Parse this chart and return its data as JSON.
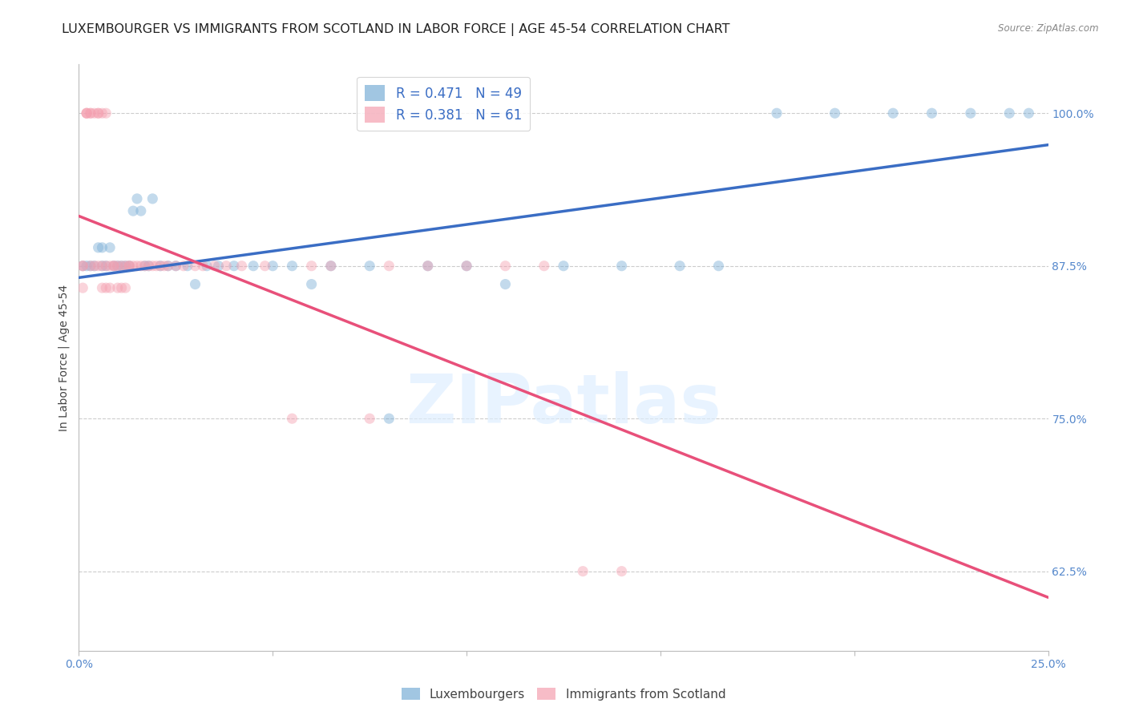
{
  "title": "LUXEMBOURGER VS IMMIGRANTS FROM SCOTLAND IN LABOR FORCE | AGE 45-54 CORRELATION CHART",
  "source": "Source: ZipAtlas.com",
  "ylabel": "In Labor Force | Age 45-54",
  "watermark": "ZIPatlas",
  "blue_R": 0.471,
  "blue_N": 49,
  "pink_R": 0.381,
  "pink_N": 61,
  "blue_color": "#7aaed6",
  "pink_color": "#f4a0b0",
  "blue_line_color": "#3a6dc4",
  "pink_line_color": "#e8507a",
  "legend_text_color": "#3a6dc4",
  "axis_label_color": "#5588cc",
  "title_color": "#222222",
  "background_color": "#FFFFFF",
  "grid_color": "#cccccc",
  "xlim": [
    0.0,
    0.25
  ],
  "ylim": [
    0.56,
    1.04
  ],
  "xticks": [
    0.0,
    0.05,
    0.1,
    0.15,
    0.2,
    0.25
  ],
  "yticks": [
    0.625,
    0.75,
    0.875,
    1.0
  ],
  "xticklabels": [
    "0.0%",
    "",
    "",
    "",
    "",
    "25.0%"
  ],
  "yticklabels": [
    "62.5%",
    "75.0%",
    "87.5%",
    "100.0%"
  ],
  "blue_x": [
    0.001,
    0.002,
    0.003,
    0.004,
    0.005,
    0.006,
    0.006,
    0.007,
    0.008,
    0.009,
    0.01,
    0.011,
    0.012,
    0.013,
    0.014,
    0.015,
    0.016,
    0.017,
    0.018,
    0.019,
    0.021,
    0.023,
    0.025,
    0.028,
    0.03,
    0.033,
    0.036,
    0.04,
    0.045,
    0.05,
    0.055,
    0.06,
    0.065,
    0.075,
    0.08,
    0.09,
    0.1,
    0.11,
    0.125,
    0.14,
    0.155,
    0.165,
    0.18,
    0.195,
    0.21,
    0.22,
    0.23,
    0.24,
    0.245
  ],
  "blue_y": [
    0.875,
    0.875,
    0.875,
    0.875,
    0.89,
    0.875,
    0.89,
    0.875,
    0.89,
    0.875,
    0.875,
    0.875,
    0.875,
    0.875,
    0.92,
    0.93,
    0.92,
    0.875,
    0.875,
    0.93,
    0.875,
    0.875,
    0.875,
    0.875,
    0.86,
    0.875,
    0.875,
    0.875,
    0.875,
    0.875,
    0.875,
    0.86,
    0.875,
    0.875,
    0.75,
    0.875,
    0.875,
    0.86,
    0.875,
    0.875,
    0.875,
    0.875,
    1.0,
    1.0,
    1.0,
    1.0,
    1.0,
    1.0,
    1.0
  ],
  "pink_x": [
    0.001,
    0.001,
    0.001,
    0.002,
    0.002,
    0.002,
    0.003,
    0.003,
    0.003,
    0.004,
    0.004,
    0.005,
    0.005,
    0.005,
    0.006,
    0.006,
    0.006,
    0.007,
    0.007,
    0.007,
    0.008,
    0.008,
    0.009,
    0.009,
    0.01,
    0.01,
    0.011,
    0.011,
    0.012,
    0.012,
    0.013,
    0.013,
    0.014,
    0.015,
    0.016,
    0.017,
    0.018,
    0.019,
    0.02,
    0.021,
    0.022,
    0.023,
    0.025,
    0.027,
    0.03,
    0.032,
    0.035,
    0.038,
    0.042,
    0.048,
    0.055,
    0.06,
    0.065,
    0.075,
    0.08,
    0.09,
    0.1,
    0.11,
    0.12,
    0.13,
    0.14
  ],
  "pink_y": [
    0.875,
    0.875,
    0.857,
    1.0,
    1.0,
    1.0,
    1.0,
    1.0,
    0.875,
    1.0,
    0.875,
    1.0,
    1.0,
    0.875,
    1.0,
    0.875,
    0.857,
    1.0,
    0.875,
    0.857,
    0.875,
    0.857,
    0.875,
    0.875,
    0.875,
    0.857,
    0.875,
    0.857,
    0.875,
    0.857,
    0.875,
    0.875,
    0.875,
    0.875,
    0.875,
    0.875,
    0.875,
    0.875,
    0.875,
    0.875,
    0.875,
    0.875,
    0.875,
    0.875,
    0.875,
    0.875,
    0.875,
    0.875,
    0.875,
    0.875,
    0.75,
    0.875,
    0.875,
    0.75,
    0.875,
    0.875,
    0.875,
    0.875,
    0.875,
    0.625,
    0.625
  ],
  "legend_labels": [
    "Luxembourgers",
    "Immigrants from Scotland"
  ],
  "title_fontsize": 11.5,
  "axis_fontsize": 10,
  "tick_fontsize": 10,
  "marker_size": 90,
  "marker_alpha": 0.45,
  "line_width": 2.5
}
